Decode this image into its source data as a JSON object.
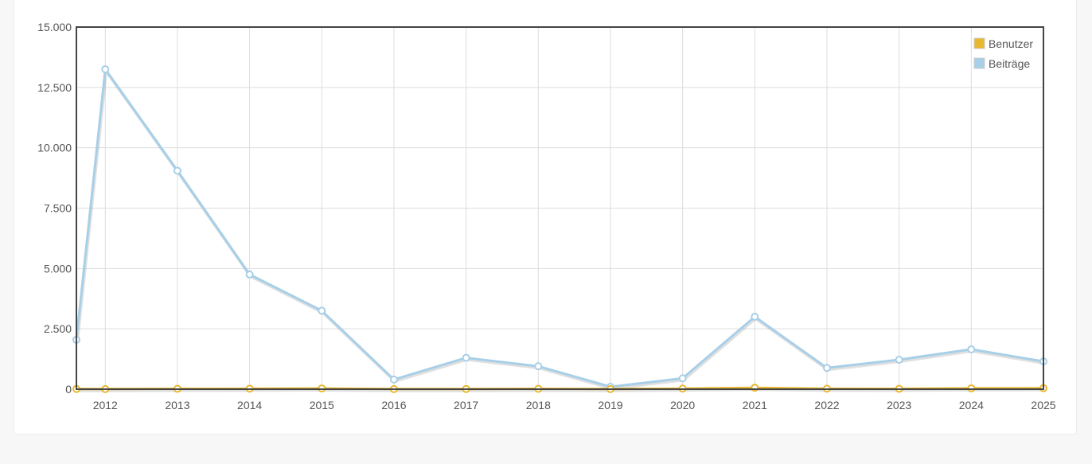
{
  "chart_data": {
    "type": "line",
    "title": "",
    "xlabel": "",
    "ylabel": "",
    "x": [
      2011,
      2012,
      2013,
      2014,
      2015,
      2016,
      2017,
      2018,
      2019,
      2020,
      2021,
      2022,
      2023,
      2024,
      2025
    ],
    "x_tick_labels": [
      "2012",
      "2013",
      "2014",
      "2015",
      "2016",
      "2017",
      "2018",
      "2019",
      "2020",
      "2021",
      "2022",
      "2023",
      "2024",
      "2025"
    ],
    "y_tick_labels": [
      "15.000",
      "12.500",
      "10.000",
      "7.500",
      "5.000",
      "2.500",
      "0"
    ],
    "ylim": [
      0,
      15000
    ],
    "xlim": [
      2011.6,
      2025
    ],
    "grid": true,
    "legend_position": "top-right",
    "series": [
      {
        "name": "Benutzer",
        "color": "#e8b830",
        "values": [
          10,
          5,
          15,
          20,
          30,
          5,
          10,
          15,
          5,
          25,
          60,
          20,
          15,
          35,
          40
        ]
      },
      {
        "name": "Beiträge",
        "color": "#a8cfe8",
        "values": [
          2050,
          13250,
          9050,
          4750,
          3250,
          400,
          1300,
          950,
          100,
          450,
          3000,
          880,
          1220,
          1650,
          1150
        ]
      }
    ]
  }
}
